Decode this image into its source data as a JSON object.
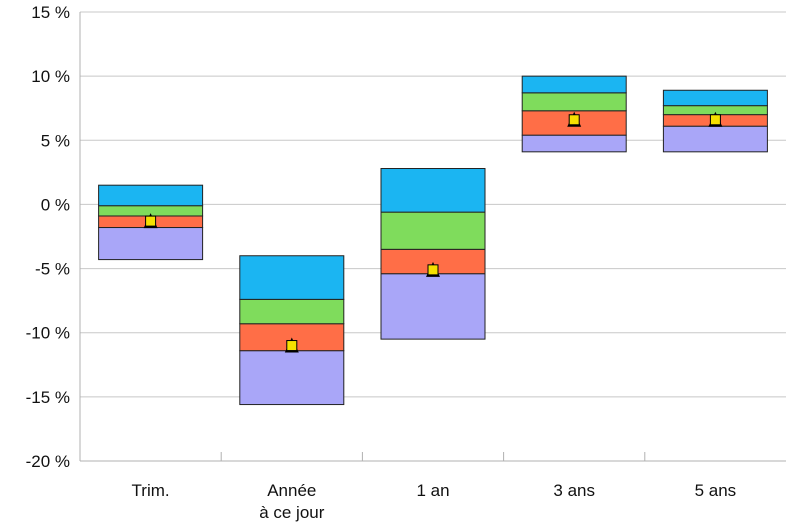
{
  "chart_data": {
    "type": "bar",
    "subtype": "floating-stacked-range",
    "title": "",
    "xlabel": "",
    "ylabel": "",
    "ylim": [
      -20,
      15
    ],
    "yticks": [
      15,
      10,
      5,
      0,
      -5,
      -10,
      -15,
      -20
    ],
    "ytick_labels": [
      "15 %",
      "10 %",
      "5 %",
      "0 %",
      "-5 %",
      "-10 %",
      "-15 %",
      "-20 %"
    ],
    "grid": true,
    "legend": "none",
    "categories": [
      {
        "label_lines": [
          "Trim."
        ]
      },
      {
        "label_lines": [
          "Année",
          "à ce jour"
        ]
      },
      {
        "label_lines": [
          "1 an"
        ]
      },
      {
        "label_lines": [
          "3 ans"
        ]
      },
      {
        "label_lines": [
          "5 ans"
        ]
      }
    ],
    "series": [
      {
        "color": "#a9a6f8",
        "values": [
          [
            -4.3,
            -1.8
          ],
          [
            -15.6,
            -11.4
          ],
          [
            -10.5,
            -5.4
          ],
          [
            4.1,
            5.4
          ],
          [
            4.1,
            6.1
          ]
        ]
      },
      {
        "color": "#ff6e47",
        "values": [
          [
            -1.8,
            -0.9
          ],
          [
            -11.4,
            -9.3
          ],
          [
            -5.4,
            -3.5
          ],
          [
            5.4,
            7.3
          ],
          [
            6.1,
            7.0
          ]
        ]
      },
      {
        "color": "#7fdc5c",
        "values": [
          [
            -0.9,
            -0.1
          ],
          [
            -9.3,
            -7.4
          ],
          [
            -3.5,
            -0.6
          ],
          [
            7.3,
            8.7
          ],
          [
            7.0,
            7.7
          ]
        ]
      },
      {
        "color": "#1bb5f2",
        "values": [
          [
            -0.1,
            1.5
          ],
          [
            -7.4,
            -4.0
          ],
          [
            -0.6,
            2.8
          ],
          [
            8.7,
            10.0
          ],
          [
            7.7,
            8.9
          ]
        ]
      }
    ],
    "markers": {
      "color": "#f5e000",
      "values": [
        -1.3,
        -11.0,
        -5.1,
        6.6,
        6.6
      ]
    }
  }
}
